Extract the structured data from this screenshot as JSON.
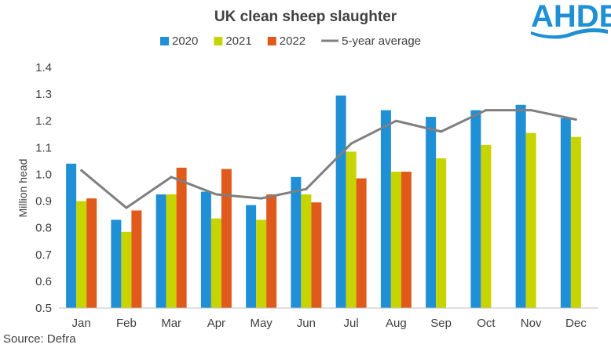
{
  "logo": {
    "text": "AHDB",
    "color": "#1f8fd6"
  },
  "source": "Source: Defra",
  "chart_data": {
    "type": "bar",
    "title": "UK clean sheep slaughter",
    "xlabel": "",
    "ylabel": "Million head",
    "ylim": [
      0.5,
      1.4
    ],
    "yticks": [
      "0.5",
      "0.6",
      "0.7",
      "0.8",
      "0.9",
      "1.0",
      "1.1",
      "1.2",
      "1.3",
      "1.4"
    ],
    "grid": false,
    "legend_position": "top",
    "categories": [
      "Jan",
      "Feb",
      "Mar",
      "Apr",
      "May",
      "Jun",
      "Jul",
      "Aug",
      "Sep",
      "Oct",
      "Nov",
      "Dec"
    ],
    "series": [
      {
        "name": "2020",
        "kind": "bar",
        "color": "#1f8fd6",
        "values": [
          1.04,
          0.83,
          0.925,
          0.935,
          0.885,
          0.99,
          1.295,
          1.24,
          1.215,
          1.24,
          1.26,
          1.21
        ]
      },
      {
        "name": "2021",
        "kind": "bar",
        "color": "#c8d400",
        "values": [
          0.9,
          0.785,
          0.925,
          0.835,
          0.83,
          0.925,
          1.085,
          1.01,
          1.06,
          1.11,
          1.155,
          1.14
        ]
      },
      {
        "name": "2022",
        "kind": "bar",
        "color": "#e05a1b",
        "values": [
          0.91,
          0.865,
          1.025,
          1.02,
          0.925,
          0.895,
          0.985,
          1.01,
          null,
          null,
          null,
          null
        ]
      },
      {
        "name": "5-year average",
        "kind": "line",
        "color": "#7f7f7f",
        "values": [
          1.015,
          0.875,
          0.99,
          0.925,
          0.91,
          0.945,
          1.115,
          1.2,
          1.16,
          1.24,
          1.24,
          1.205
        ]
      }
    ]
  }
}
